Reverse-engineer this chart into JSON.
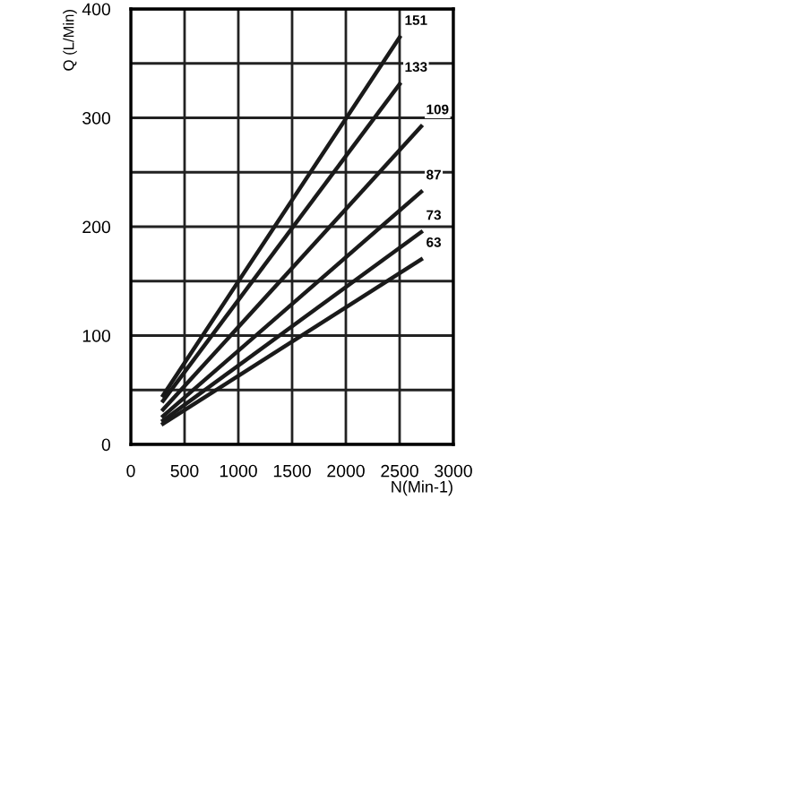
{
  "chart_data": {
    "type": "line",
    "xlabel": "N(Min-1)",
    "ylabel": "Q (L/Min)",
    "xlim": [
      0,
      3000
    ],
    "ylim": [
      0,
      400
    ],
    "xticks": [
      0,
      500,
      1000,
      1500,
      2000,
      2500,
      3000
    ],
    "yticks": [
      0,
      {
        "value": 50,
        "label": null
      },
      100,
      {
        "value": 150,
        "label": null
      },
      200,
      {
        "value": 250,
        "label": null
      },
      300,
      {
        "value": 350,
        "label": null
      },
      400
    ],
    "grid": true,
    "line_style": "solid",
    "series": [
      {
        "name": "151",
        "color": "#1a1a1a",
        "x": [
          300,
          2500
        ],
        "values": [
          45,
          374
        ]
      },
      {
        "name": "133",
        "color": "#1a1a1a",
        "x": [
          300,
          2500
        ],
        "values": [
          40,
          331
        ]
      },
      {
        "name": "109",
        "color": "#1a1a1a",
        "x": [
          300,
          2700
        ],
        "values": [
          32,
          292
        ]
      },
      {
        "name": "87",
        "color": "#1a1a1a",
        "x": [
          300,
          2700
        ],
        "values": [
          26,
          232
        ]
      },
      {
        "name": "73",
        "color": "#1a1a1a",
        "x": [
          300,
          2700
        ],
        "values": [
          22,
          195
        ]
      },
      {
        "name": "63",
        "color": "#1a1a1a",
        "x": [
          300,
          2700
        ],
        "values": [
          19,
          170
        ]
      }
    ]
  }
}
